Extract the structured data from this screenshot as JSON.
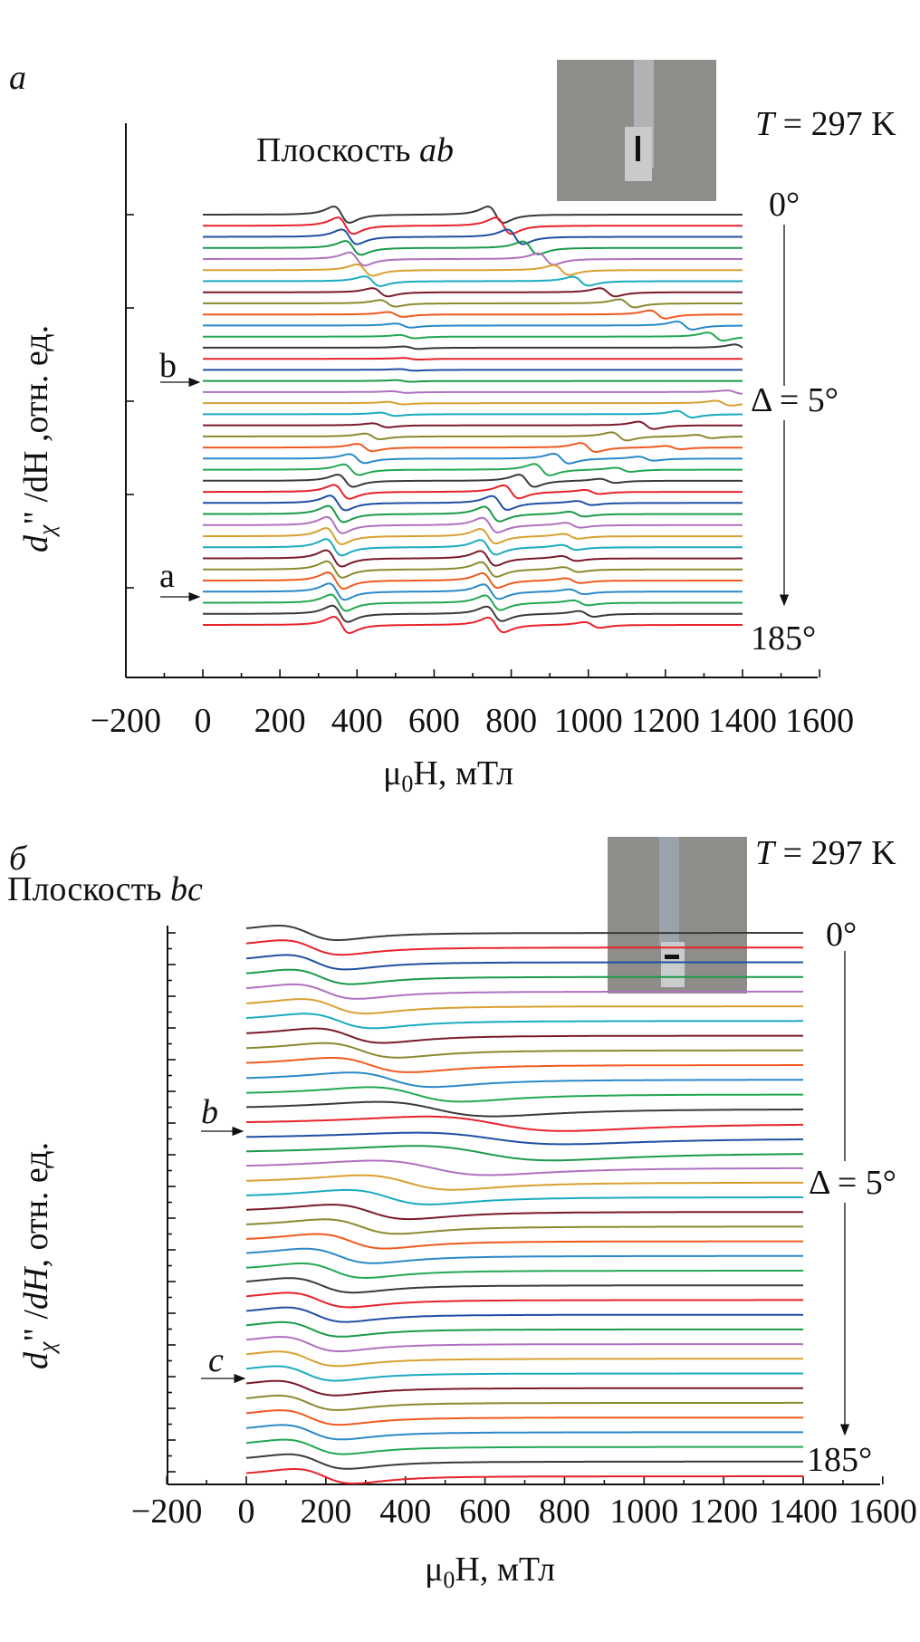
{
  "chart_data": [
    {
      "type": "line",
      "panel_label": "a",
      "title": "Плоскость ",
      "title_italic": "ab",
      "temperature": {
        "symbol": "T",
        "text": " = 297 K"
      },
      "angle_start": "0°",
      "angle_step": "Δ = 5°",
      "angle_end": "185°",
      "markers": [
        {
          "label": "b",
          "series_angle": 40
        },
        {
          "label": "a",
          "series_angle": 160
        }
      ],
      "xlabel": {
        "mu": "μ",
        "sub": "0",
        "rest": "H, мТл"
      },
      "ylabel": {
        "d": "d",
        "sub": "χ",
        "rest": "\" /dH ,отн. ед."
      },
      "xlim": [
        -200,
        1600
      ],
      "xticks": [
        "−200",
        "0",
        "200",
        "400",
        "600",
        "800",
        "1000",
        "1200",
        "1400",
        "1600"
      ],
      "x_range": [
        0,
        1400
      ],
      "linewidth_mT": 35,
      "series_note": "each series: angle (deg) and resonance lines [center mT, relative amplitude]",
      "series": [
        {
          "angle": 0,
          "lines": [
            [
              360,
              1.0
            ],
            [
              760,
              1.0
            ]
          ]
        },
        {
          "angle": 5,
          "lines": [
            [
              370,
              1.0
            ],
            [
              780,
              1.0
            ]
          ]
        },
        {
          "angle": 10,
          "lines": [
            [
              380,
              0.9
            ],
            [
              810,
              0.9
            ]
          ]
        },
        {
          "angle": 15,
          "lines": [
            [
              390,
              0.85
            ],
            [
              850,
              0.8
            ]
          ]
        },
        {
          "angle": 20,
          "lines": [
            [
              400,
              0.8
            ],
            [
              890,
              0.7
            ]
          ]
        },
        {
          "angle": 25,
          "lines": [
            [
              420,
              0.7
            ],
            [
              930,
              0.6
            ]
          ]
        },
        {
          "angle": 30,
          "lines": [
            [
              440,
              0.6
            ],
            [
              980,
              0.55
            ]
          ]
        },
        {
          "angle": 35,
          "lines": [
            [
              460,
              0.5
            ],
            [
              1050,
              0.5
            ]
          ]
        },
        {
          "angle": 40,
          "lines": [
            [
              480,
              0.4
            ],
            [
              1100,
              0.5
            ]
          ]
        },
        {
          "angle": 45,
          "lines": [
            [
              500,
              0.3
            ],
            [
              1180,
              0.5
            ]
          ]
        },
        {
          "angle": 50,
          "lines": [
            [
              520,
              0.25
            ],
            [
              1250,
              0.5
            ]
          ]
        },
        {
          "angle": 55,
          "lines": [
            [
              530,
              0.2
            ],
            [
              1330,
              0.5
            ]
          ]
        },
        {
          "angle": 60,
          "lines": [
            [
              540,
              0.15
            ],
            [
              1400,
              0.4
            ]
          ]
        },
        {
          "angle": 65,
          "lines": [
            [
              540,
              0.1
            ]
          ]
        },
        {
          "angle": 70,
          "lines": [
            [
              530,
              0.1
            ]
          ]
        },
        {
          "angle": 75,
          "lines": [
            [
              520,
              0.1
            ]
          ]
        },
        {
          "angle": 80,
          "lines": [
            [
              510,
              0.1
            ],
            [
              1380,
              0.2
            ]
          ]
        },
        {
          "angle": 85,
          "lines": [
            [
              500,
              0.15
            ],
            [
              1350,
              0.3
            ]
          ]
        },
        {
          "angle": 90,
          "lines": [
            [
              480,
              0.2
            ],
            [
              1250,
              0.4
            ]
          ]
        },
        {
          "angle": 95,
          "lines": [
            [
              460,
              0.25
            ],
            [
              1150,
              0.45
            ]
          ]
        },
        {
          "angle": 100,
          "lines": [
            [
              440,
              0.35
            ],
            [
              1080,
              0.5
            ],
            [
              1300,
              0.2
            ]
          ]
        },
        {
          "angle": 105,
          "lines": [
            [
              420,
              0.45
            ],
            [
              1000,
              0.55
            ],
            [
              1220,
              0.2
            ]
          ]
        },
        {
          "angle": 110,
          "lines": [
            [
              400,
              0.55
            ],
            [
              930,
              0.6
            ],
            [
              1150,
              0.25
            ]
          ]
        },
        {
          "angle": 115,
          "lines": [
            [
              385,
              0.65
            ],
            [
              880,
              0.7
            ],
            [
              1090,
              0.25
            ]
          ]
        },
        {
          "angle": 120,
          "lines": [
            [
              370,
              0.75
            ],
            [
              840,
              0.75
            ],
            [
              1050,
              0.25
            ]
          ]
        },
        {
          "angle": 125,
          "lines": [
            [
              360,
              0.85
            ],
            [
              800,
              0.8
            ],
            [
              1010,
              0.25
            ]
          ]
        },
        {
          "angle": 130,
          "lines": [
            [
              350,
              0.9
            ],
            [
              770,
              0.85
            ],
            [
              990,
              0.25
            ]
          ]
        },
        {
          "angle": 135,
          "lines": [
            [
              345,
              1.0
            ],
            [
              750,
              0.9
            ],
            [
              970,
              0.3
            ]
          ]
        },
        {
          "angle": 140,
          "lines": [
            [
              342,
              1.0
            ],
            [
              745,
              0.9
            ],
            [
              960,
              0.3
            ]
          ]
        },
        {
          "angle": 145,
          "lines": [
            [
              340,
              1.0
            ],
            [
              740,
              0.9
            ],
            [
              955,
              0.3
            ]
          ]
        },
        {
          "angle": 150,
          "lines": [
            [
              340,
              1.0
            ],
            [
              740,
              0.9
            ],
            [
              950,
              0.3
            ]
          ]
        },
        {
          "angle": 155,
          "lines": [
            [
              340,
              1.0
            ],
            [
              740,
              0.9
            ],
            [
              950,
              0.3
            ]
          ]
        },
        {
          "angle": 160,
          "lines": [
            [
              342,
              1.0
            ],
            [
              742,
              0.9
            ],
            [
              955,
              0.3
            ]
          ]
        },
        {
          "angle": 165,
          "lines": [
            [
              345,
              1.0
            ],
            [
              745,
              0.9
            ],
            [
              960,
              0.3
            ]
          ]
        },
        {
          "angle": 170,
          "lines": [
            [
              348,
              1.0
            ],
            [
              748,
              0.9
            ],
            [
              970,
              0.3
            ]
          ]
        },
        {
          "angle": 175,
          "lines": [
            [
              352,
              1.0
            ],
            [
              752,
              0.9
            ],
            [
              980,
              0.3
            ]
          ]
        },
        {
          "angle": 180,
          "lines": [
            [
              356,
              1.0
            ],
            [
              756,
              0.9
            ],
            [
              995,
              0.35
            ]
          ]
        },
        {
          "angle": 185,
          "lines": [
            [
              360,
              1.0
            ],
            [
              760,
              0.9
            ],
            [
              1010,
              0.35
            ]
          ]
        }
      ]
    },
    {
      "type": "line",
      "panel_label": "б",
      "title": "Плоскость ",
      "title_italic": "bc",
      "temperature": {
        "symbol": "T",
        "text": " = 297 K"
      },
      "angle_start": "0°",
      "angle_step": "Δ = 5°",
      "angle_end": "185°",
      "markers": [
        {
          "label": "b",
          "series_angle": 60
        },
        {
          "label": "c",
          "series_angle": 150
        }
      ],
      "xlabel": {
        "mu": "μ",
        "sub": "0",
        "rest": "H, мТл"
      },
      "ylabel": {
        "d": "d",
        "sub": "χ",
        "rest1": "\" /",
        "dH": "dH",
        "rest2": ", отн. ед."
      },
      "xlim": [
        -200,
        1600
      ],
      "xticks": [
        "−200",
        "0",
        "200",
        "400",
        "600",
        "800",
        "1000",
        "1200",
        "1400",
        "1600"
      ],
      "x_range": [
        0,
        1400
      ],
      "series_note": "each series: angle (deg) and resonance line [center mT, width mT, relative amplitude]",
      "series": [
        {
          "angle": 0,
          "lines": [
            [
              155,
              130,
              1
            ]
          ]
        },
        {
          "angle": 5,
          "lines": [
            [
              165,
              130,
              1
            ]
          ]
        },
        {
          "angle": 10,
          "lines": [
            [
              175,
              130,
              1
            ]
          ]
        },
        {
          "angle": 15,
          "lines": [
            [
              187,
              135,
              1
            ]
          ]
        },
        {
          "angle": 20,
          "lines": [
            [
              199,
              140,
              1
            ]
          ]
        },
        {
          "angle": 25,
          "lines": [
            [
              219,
              140,
              1
            ]
          ]
        },
        {
          "angle": 30,
          "lines": [
            [
              233,
              150,
              1
            ]
          ]
        },
        {
          "angle": 35,
          "lines": [
            [
              258,
              150,
              1
            ]
          ]
        },
        {
          "angle": 40,
          "lines": [
            [
              288,
              160,
              1
            ]
          ]
        },
        {
          "angle": 45,
          "lines": [
            [
              312,
              170,
              1
            ]
          ]
        },
        {
          "angle": 50,
          "lines": [
            [
              366,
              180,
              1
            ]
          ]
        },
        {
          "angle": 55,
          "lines": [
            [
              425,
              200,
              1
            ]
          ]
        },
        {
          "angle": 60,
          "lines": [
            [
              476,
              250,
              1
            ]
          ]
        },
        {
          "angle": 65,
          "lines": [
            [
              627,
              300,
              1
            ]
          ]
        },
        {
          "angle": 70,
          "lines": [
            [
              615,
              320,
              0.8
            ]
          ]
        },
        {
          "angle": 75,
          "lines": [
            [
              597,
              300,
              1
            ]
          ]
        },
        {
          "angle": 80,
          "lines": [
            [
              466,
              250,
              1
            ]
          ]
        },
        {
          "angle": 85,
          "lines": [
            [
              405,
              200,
              1
            ]
          ]
        },
        {
          "angle": 90,
          "lines": [
            [
              356,
              180,
              1
            ]
          ]
        },
        {
          "angle": 95,
          "lines": [
            [
              312,
              170,
              1
            ]
          ]
        },
        {
          "angle": 100,
          "lines": [
            [
              288,
              160,
              1
            ]
          ]
        },
        {
          "angle": 105,
          "lines": [
            [
              263,
              150,
              1
            ]
          ]
        },
        {
          "angle": 110,
          "lines": [
            [
              233,
              150,
              1
            ]
          ]
        },
        {
          "angle": 115,
          "lines": [
            [
              219,
              140,
              1
            ]
          ]
        },
        {
          "angle": 120,
          "lines": [
            [
              189,
              140,
              1
            ]
          ]
        },
        {
          "angle": 125,
          "lines": [
            [
              182,
              135,
              1
            ]
          ]
        },
        {
          "angle": 130,
          "lines": [
            [
              175,
              130,
              1
            ]
          ]
        },
        {
          "angle": 135,
          "lines": [
            [
              165,
              130,
              1
            ]
          ]
        },
        {
          "angle": 140,
          "lines": [
            [
              160,
              130,
              1
            ]
          ]
        },
        {
          "angle": 145,
          "lines": [
            [
              155,
              130,
              1
            ]
          ]
        },
        {
          "angle": 150,
          "lines": [
            [
              150,
              130,
              1
            ]
          ]
        },
        {
          "angle": 155,
          "lines": [
            [
              150,
              130,
              1
            ]
          ]
        },
        {
          "angle": 160,
          "lines": [
            [
              155,
              130,
              1
            ]
          ]
        },
        {
          "angle": 165,
          "lines": [
            [
              160,
              130,
              1
            ]
          ]
        },
        {
          "angle": 170,
          "lines": [
            [
              165,
              130,
              1
            ]
          ]
        },
        {
          "angle": 175,
          "lines": [
            [
              170,
              130,
              1
            ]
          ]
        },
        {
          "angle": 180,
          "lines": [
            [
              180,
              130,
              1
            ]
          ]
        },
        {
          "angle": 185,
          "lines": [
            [
              195,
              130,
              1
            ]
          ]
        }
      ]
    }
  ],
  "palette": [
    "#3a3a3a",
    "#e8222a",
    "#1f4fa3",
    "#1a9a48",
    "#b070c0",
    "#d9a030",
    "#1aabbf",
    "#7a1a2a",
    "#8a8a30",
    "#f05a20",
    "#2a88c8",
    "#22a850"
  ]
}
